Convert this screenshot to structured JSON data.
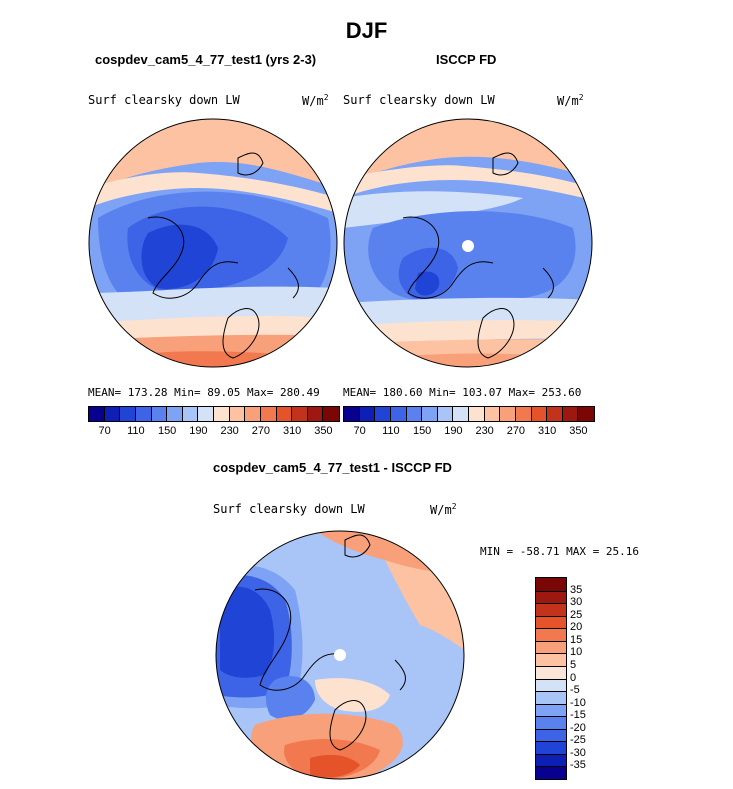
{
  "figure_title": "DJF",
  "panels": {
    "model": {
      "title": "cospdev_cam5_4_77_test1 (yrs 2-3)",
      "variable": "Surf clearsky down LW",
      "units_base": "W/m",
      "units_exp": "2",
      "stats": "MEAN= 173.28   Min=  89.05   Max= 280.49"
    },
    "obs": {
      "title": "ISCCP FD",
      "variable": "Surf clearsky down LW",
      "units_base": "W/m",
      "units_exp": "2",
      "stats": "MEAN= 180.60   Min= 103.07   Max= 253.60"
    },
    "diff": {
      "title": "cospdev_cam5_4_77_test1 - ISCCP FD",
      "variable": "Surf clearsky down LW",
      "units_base": "W/m",
      "units_exp": "2",
      "stats": "MIN = -58.71 MAX =   25.16"
    }
  },
  "colorbar_abs": {
    "colors": [
      "#08008f",
      "#0d1fb5",
      "#1f44d6",
      "#3d63e6",
      "#5a82ef",
      "#7ea3f4",
      "#a9c4f7",
      "#d4e2f8",
      "#fde2cf",
      "#fcc2a1",
      "#f7a079",
      "#f2794f",
      "#e5532b",
      "#c3321a",
      "#9c1810",
      "#7a0606"
    ],
    "labels": [
      "70",
      "110",
      "150",
      "190",
      "230",
      "270",
      "310",
      "350"
    ]
  },
  "colorbar_diff": {
    "colors": [
      "#08008f",
      "#0d1fb5",
      "#1f44d6",
      "#3d63e6",
      "#5a82ef",
      "#7ea3f4",
      "#a9c4f7",
      "#d4e2f8",
      "#fbe5d6",
      "#fcc2a1",
      "#f7a079",
      "#f2794f",
      "#e5532b",
      "#c3321a",
      "#9c1810",
      "#7a0606"
    ],
    "labels": [
      "-35",
      "-30",
      "-25",
      "-20",
      "-15",
      "-10",
      "-5",
      "0",
      "5",
      "10",
      "15",
      "20",
      "25",
      "30",
      "35"
    ]
  },
  "map_colors": {
    "deep": "#1f44d6",
    "mid": "#3d63e6",
    "light": "#5a82ef",
    "pale": "#7ea3f4",
    "paler": "#a9c4f7",
    "neutral": "#d4e2f8",
    "warm1": "#fde2cf",
    "warm2": "#fcc2a1",
    "warm3": "#f7a079",
    "warm4": "#f2794f",
    "warm5": "#e5532b"
  }
}
